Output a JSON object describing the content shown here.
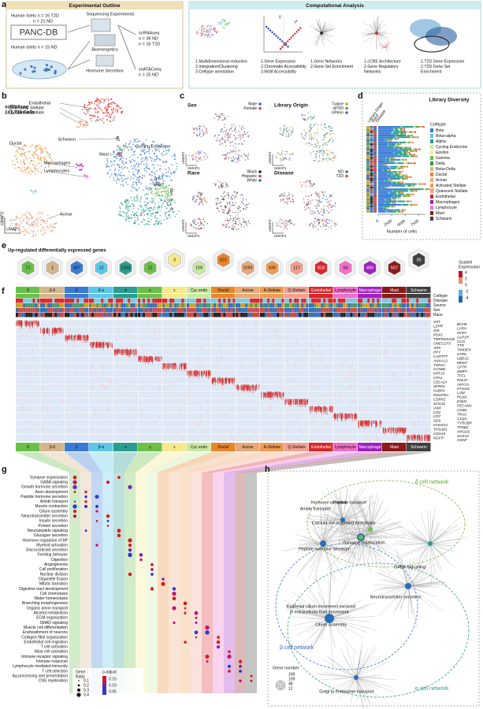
{
  "panel_a": {
    "label": "a",
    "left_title": "Experimental Outline",
    "right_title": "Computational Analysis",
    "islets_t2d": [
      "Human Islets n = 16 T2D",
      "n = 21 ND"
    ],
    "panc_db": "PANC-DB",
    "islets_nd": "Human Islets n = 15 ND",
    "seq_exp": "Sequencing Experiments",
    "bioenergetics": "Bioenergetics",
    "hormone": "Hormone Secretion",
    "scrnaseq": [
      "scRNAseq",
      "n = 36 ND",
      "n = 16 T2D"
    ],
    "snatacseq": [
      "snATACseq",
      "n = 15 ND"
    ],
    "symbols": [
      "♀",
      "♂"
    ],
    "analyses": [
      [
        "1.Multidimensional reduction",
        "2.Integration/Clustering",
        "3.Celltype annotation"
      ],
      [
        "1.Gene Expression",
        "2.Chromatin Accessibility",
        "3.Motif Accessibility"
      ],
      [
        "1.Gene Networks",
        "2.Gene Set Enrichment"
      ],
      [
        "1.cCRE Architecture",
        "2.Gene Regulatory",
        "Networks"
      ],
      [
        "1.T2D Gene Expression",
        "2.T2D Gene Set",
        "Enrichment"
      ]
    ]
  },
  "panel_b": {
    "label": "b",
    "title": "scRNAseq",
    "subtitle": "141,739 Cells",
    "clusters": [
      "Endothelial",
      "Quiescent Stellate",
      "Activated Stellate",
      "Schwann",
      "Cycling Endocrine",
      "Mast",
      "Ductal",
      "Macrophages",
      "Lymphocytes",
      "β-δ",
      "β-α",
      "β",
      "δ",
      "γ",
      "ε",
      "α",
      "Acinar"
    ],
    "x_axis": "UMAP1",
    "y_axis": "UMAP2"
  },
  "panel_c": {
    "label": "c",
    "plots": [
      {
        "title": "Sex",
        "legend": [
          "Male",
          "Female"
        ],
        "colors": [
          "#3a6fb5",
          "#c94f4f"
        ]
      },
      {
        "title": "Library Origin",
        "legend": [
          "Tulane",
          "nPOD",
          "UPenn"
        ],
        "colors": [
          "#c9a227",
          "#4a9a6a",
          "#3a6fb5"
        ]
      },
      {
        "title": "Race",
        "legend": [
          "Black",
          "Hispanic",
          "White"
        ],
        "colors": [
          "#222222",
          "#d1453b",
          "#3a6fb5"
        ]
      },
      {
        "title": "Disease",
        "legend": [
          "ND",
          "T2D"
        ],
        "colors": [
          "#3a6fb5",
          "#d1453b"
        ]
      }
    ],
    "x_axis": "UMAP1",
    "y_axis": "UMAP2"
  },
  "panel_d": {
    "label": "d",
    "title": "Library Diversity",
    "col_labels": [
      "Library Origin",
      "Race",
      "Disease"
    ],
    "legend_title": "Celltype",
    "celltypes": [
      "Beta",
      "Beta+alpha",
      "Alpha",
      "Cycling Endocrine",
      "Epsilon",
      "Gamma",
      "Delta",
      "Beta+Delta",
      "Ductal",
      "Acinar",
      "Activated Stellate",
      "Quiescent Stellate",
      "Endothelial",
      "Macrophages",
      "Lymphocyte",
      "Mast",
      "Schwann"
    ],
    "colors": [
      "#3a7bd5",
      "#5bc8e8",
      "#2a9d8f",
      "#c9e8a0",
      "#f5e98c",
      "#6cc04a",
      "#3d9b3d",
      "#d4b48c",
      "#e8862a",
      "#e8a878",
      "#f09a52",
      "#f4a090",
      "#d9262a",
      "#a020c0",
      "#f06ec8",
      "#8b1a1a",
      "#404040"
    ],
    "x_ticks": [
      "0",
      "2500",
      "5000",
      "7500"
    ],
    "x_axis": "Number of cells"
  },
  "panel_e": {
    "label": "e",
    "title": "Up-regulated differentially expressed genes",
    "counts": [
      "71",
      "1",
      "487",
      "12",
      "1393",
      "12",
      "3",
      "159",
      "621",
      "1093",
      "935",
      "117",
      "818",
      "64",
      "400",
      "557",
      "35"
    ]
  },
  "panel_f": {
    "label": "f",
    "columns": [
      "δ",
      "β-δ",
      "β",
      "β-α",
      "α",
      "γ",
      "ε",
      "Cyc endo",
      "Ductal",
      "Acinar",
      "A-Stellate",
      "Q-Stellate",
      "Endothelial",
      "Lymphocyte",
      "Macrophage",
      "Mast",
      "Schwann"
    ],
    "colors": [
      "#6abf4b",
      "#d4b48c",
      "#3a7bd5",
      "#5bc8e8",
      "#2a9d8f",
      "#6cc04a",
      "#f5e98c",
      "#c9e8a0",
      "#e8862a",
      "#e8a878",
      "#f09a52",
      "#f4a090",
      "#d9262a",
      "#f06ec8",
      "#a020c0",
      "#8b1a1a",
      "#404040"
    ],
    "row_labels": [
      "Celltype",
      "Disease",
      "Source",
      "Sex",
      "Race"
    ],
    "colorbar_title": [
      "Scaled",
      "Expression"
    ],
    "colorbar_ticks": [
      "4",
      "2",
      "0",
      "-2",
      "-4"
    ],
    "genes": [
      "SST",
      "BCHE",
      "LEPR",
      "LYRH",
      "INS",
      "MAFA",
      "PDX1",
      "GLP1R",
      "TMPRSS11B",
      "GCG",
      "ONECUT3",
      "TTR",
      "ARX",
      "TM4SF4",
      "PPY",
      "GHRL",
      "CARTPT",
      "UBE2C",
      "ANXA13",
      "MKI67",
      "TOP2A",
      "CFTR",
      "CCNB2",
      "MMP7",
      "KRT23",
      "TFF1",
      "CPA1",
      "PNLIP",
      "CELA2A",
      "AMY2A",
      "SFRP2",
      "PTGDS",
      "FABP4",
      "LUM",
      "PDGFRA",
      "RGS5",
      "CSRP2",
      "ESM1",
      "SOX18",
      "PECAM1",
      "VWF",
      "CD3D",
      "CD2",
      "TRAC",
      "CD7",
      "C1QA",
      "SDS",
      "TYROBP",
      "FCER1G",
      "TPSB2",
      "TPSAB1",
      "HPGDS",
      "CDH19",
      "SOX10",
      "NGFR",
      "GDNF"
    ]
  },
  "panel_g": {
    "label": "g",
    "terms": [
      "Synapse organization",
      "GABA signaling",
      "Growth hormone secretion",
      "Axon development",
      "Peptide hormone secretion",
      "Amide transport",
      "Muscle contraction",
      "Cilium assembly",
      "Neurotransmitter secretion",
      "Insulin secretion",
      "Protein secretion",
      "Neuropeptide signaling",
      "Glucagon secretion",
      "Hormone regulation of BP",
      "Myeloid activation",
      "Glucocorticoid secretion",
      "Feeding behavior",
      "Digestion",
      "Angiogenesis",
      "Cell proliferation",
      "Nuclear division",
      "Organelle fission",
      "Mitotic transition",
      "Digestive tract development",
      "Cell chemotaxis",
      "Water homeostasis",
      "Branching morphogenesis",
      "Organic anion transport",
      "Alcohol metabolism",
      "ECM organization",
      "SMAD signaling",
      "Muscle cell differentiation",
      "Ensheathment of neurons",
      "Collagen fibril organization",
      "Endothelial cell migration",
      "T cell activation",
      "Mast cell activation",
      "Immune receptor signaling",
      "Immune response",
      "Lymphocyte mediated immunity",
      "T cell selection",
      "Ag processing and presentation",
      "CNS myelination"
    ],
    "size_title": [
      "Gene",
      "Ratio"
    ],
    "size_ticks": [
      "0.1",
      "0.2",
      "0.3",
      "0.4"
    ],
    "color_title": "p-adjust",
    "color_ticks": [
      "0.15",
      "0.10",
      "0.05"
    ]
  },
  "panel_h": {
    "label": "h",
    "networks": [
      "δ cell network",
      "β cell network",
      "α cell network"
    ],
    "nodes": [
      "Hormone secretion",
      "Peptide transport",
      "Amide transport",
      "Calcium-ion regulated exocytosis",
      "Synapse organization",
      "Peptide hormone secretion",
      "GABA Signalling",
      "Neurotransmitter secretion",
      "Cilium assembly",
      "Golgi to endosome transport"
    ],
    "epithelial": [
      "Epithelial cilium movement involved",
      "in extracellular fluid movement"
    ],
    "legend_title": "Gene number",
    "legend_ticks": [
      "169",
      "109",
      "48",
      "12"
    ]
  }
}
